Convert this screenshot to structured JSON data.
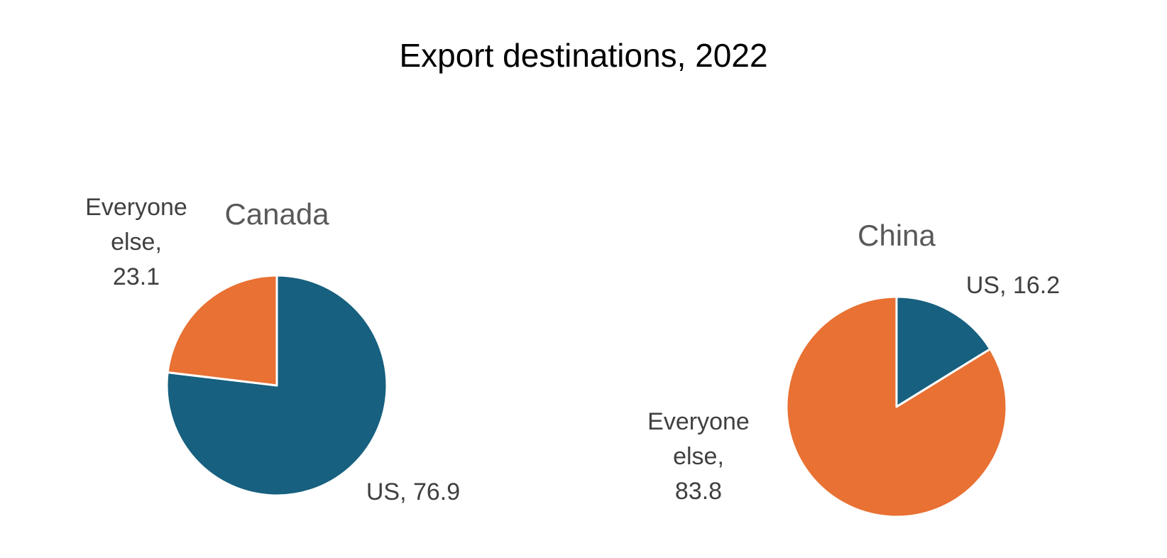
{
  "page_title": "Export destinations, 2022",
  "chart_data": [
    {
      "type": "pie",
      "title": "Canada",
      "slices": [
        {
          "label": "US",
          "value": 76.9,
          "color": "#17607F",
          "label_lines": [
            "US, 76.9"
          ]
        },
        {
          "label": "Everyone else",
          "value": 23.1,
          "color": "#E87133",
          "label_lines": [
            "Everyone",
            "else,",
            "23.1"
          ]
        }
      ]
    },
    {
      "type": "pie",
      "title": "China",
      "slices": [
        {
          "label": "US",
          "value": 16.2,
          "color": "#17607F",
          "label_lines": [
            "US, 16.2"
          ]
        },
        {
          "label": "Everyone else",
          "value": 83.8,
          "color": "#E87133",
          "label_lines": [
            "Everyone",
            "else,",
            "83.8"
          ]
        }
      ]
    }
  ]
}
